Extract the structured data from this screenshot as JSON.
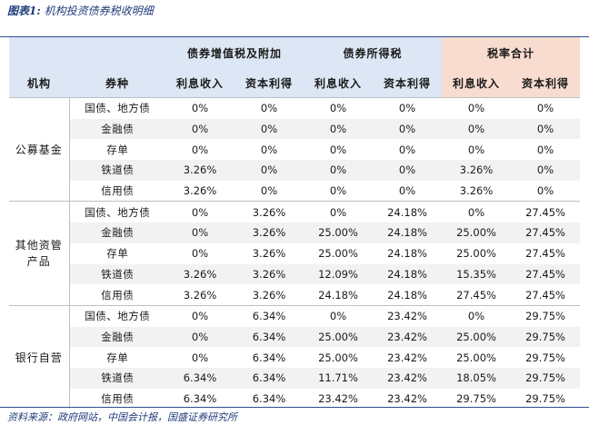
{
  "caption": {
    "label": "图表1:",
    "title": "机构投资债券税收明细"
  },
  "header": {
    "groups": [
      "债券增值税及附加",
      "债券所得税",
      "税率合计"
    ],
    "col_institution": "机构",
    "col_bond": "券种",
    "sub": [
      "利息收入",
      "资本利得",
      "利息收入",
      "资本利得",
      "利息收入",
      "资本利得"
    ]
  },
  "groups": [
    {
      "institution": "公募基金",
      "rows": [
        {
          "bond": "国债、地方债",
          "v": [
            "0%",
            "0%",
            "0%",
            "0%",
            "0%",
            "0%"
          ]
        },
        {
          "bond": "金融债",
          "v": [
            "0%",
            "0%",
            "0%",
            "0%",
            "0%",
            "0%"
          ]
        },
        {
          "bond": "存单",
          "v": [
            "0%",
            "0%",
            "0%",
            "0%",
            "0%",
            "0%"
          ]
        },
        {
          "bond": "铁道债",
          "v": [
            "3.26%",
            "0%",
            "0%",
            "0%",
            "3.26%",
            "0%"
          ]
        },
        {
          "bond": "信用债",
          "v": [
            "3.26%",
            "0%",
            "0%",
            "0%",
            "3.26%",
            "0%"
          ]
        }
      ]
    },
    {
      "institution": "其他资管\n产品",
      "rows": [
        {
          "bond": "国债、地方债",
          "v": [
            "0%",
            "3.26%",
            "0%",
            "24.18%",
            "0%",
            "27.45%"
          ]
        },
        {
          "bond": "金融债",
          "v": [
            "0%",
            "3.26%",
            "25.00%",
            "24.18%",
            "25.00%",
            "27.45%"
          ]
        },
        {
          "bond": "存单",
          "v": [
            "0%",
            "3.26%",
            "25.00%",
            "24.18%",
            "25.00%",
            "27.45%"
          ]
        },
        {
          "bond": "铁道债",
          "v": [
            "3.26%",
            "3.26%",
            "12.09%",
            "24.18%",
            "15.35%",
            "27.45%"
          ]
        },
        {
          "bond": "信用债",
          "v": [
            "3.26%",
            "3.26%",
            "24.18%",
            "24.18%",
            "27.45%",
            "27.45%"
          ]
        }
      ]
    },
    {
      "institution": "银行自营",
      "rows": [
        {
          "bond": "国债、地方债",
          "v": [
            "0%",
            "6.34%",
            "0%",
            "23.42%",
            "0%",
            "29.75%"
          ]
        },
        {
          "bond": "金融债",
          "v": [
            "0%",
            "6.34%",
            "25.00%",
            "23.42%",
            "25.00%",
            "29.75%"
          ]
        },
        {
          "bond": "存单",
          "v": [
            "0%",
            "6.34%",
            "25.00%",
            "23.42%",
            "25.00%",
            "29.75%"
          ]
        },
        {
          "bond": "铁道债",
          "v": [
            "6.34%",
            "6.34%",
            "11.71%",
            "23.42%",
            "18.05%",
            "29.75%"
          ]
        },
        {
          "bond": "信用债",
          "v": [
            "6.34%",
            "6.34%",
            "23.42%",
            "23.42%",
            "29.75%",
            "29.75%"
          ]
        }
      ]
    }
  ],
  "source": "资料来源：政府网站，中国会计报，国盛证券研究所"
}
